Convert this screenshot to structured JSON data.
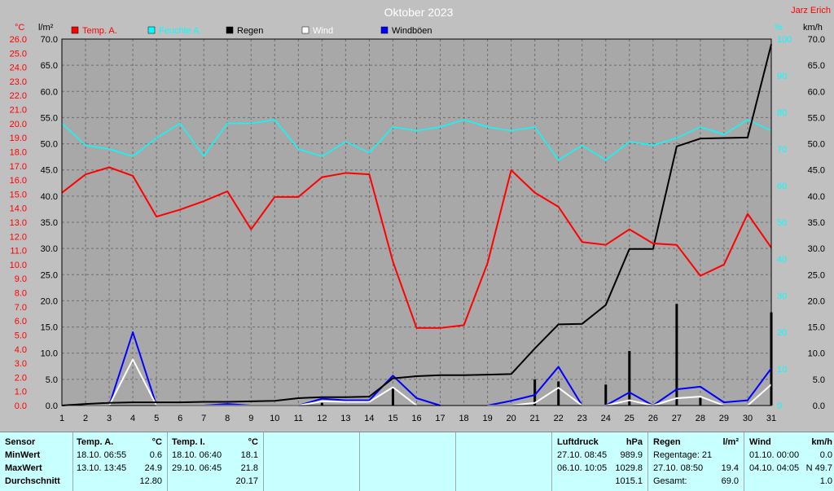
{
  "chart_data": {
    "type": "line",
    "title": "Oktober 2023",
    "corner_label": "Jarz Erich",
    "unit_labels": {
      "temp": "°C",
      "rain": "l/m²",
      "hum": "%",
      "wind": "km/h"
    },
    "legend": [
      {
        "name": "Temp. A.",
        "color": "#ff0000"
      },
      {
        "name": "Feuchte A.",
        "color": "#00ffff"
      },
      {
        "name": "Regen",
        "color": "#000000"
      },
      {
        "name": "Wind",
        "color": "#ffffff"
      },
      {
        "name": "Windböen",
        "color": "#0000ff"
      }
    ],
    "x": [
      1,
      2,
      3,
      4,
      5,
      6,
      7,
      8,
      9,
      10,
      11,
      12,
      13,
      14,
      15,
      16,
      17,
      18,
      19,
      20,
      21,
      22,
      23,
      24,
      25,
      26,
      27,
      28,
      29,
      30,
      31
    ],
    "axes": {
      "temp": {
        "ticks": [
          "26.0",
          "25.0",
          "24.0",
          "23.0",
          "22.0",
          "21.0",
          "20.0",
          "19.0",
          "18.0",
          "17.0",
          "16.0",
          "15.0",
          "14.0",
          "13.0",
          "12.0",
          "11.0",
          "10.0",
          "9.0",
          "8.0",
          "7.0",
          "6.0",
          "5.0",
          "4.0",
          "3.0",
          "2.0",
          "1.0",
          "0.0"
        ],
        "range": [
          0,
          26
        ]
      },
      "rain": {
        "ticks": [
          "70.0",
          "65.0",
          "60.0",
          "55.0",
          "50.0",
          "45.0",
          "40.0",
          "35.0",
          "30.0",
          "25.0",
          "20.0",
          "15.0",
          "10.0",
          "5.0",
          "0.0"
        ],
        "range": [
          0,
          70
        ]
      },
      "hum": {
        "ticks": [
          "100",
          "90",
          "80",
          "70",
          "60",
          "50",
          "40",
          "30",
          "20",
          "10",
          "0"
        ],
        "range": [
          0,
          100
        ]
      },
      "wind": {
        "ticks": [
          "70.0",
          "65.0",
          "60.0",
          "55.0",
          "50.0",
          "45.0",
          "40.0",
          "35.0",
          "30.0",
          "25.0",
          "20.0",
          "15.0",
          "10.0",
          "5.0",
          "0.0"
        ],
        "range": [
          0,
          70
        ]
      }
    },
    "series": [
      {
        "name": "Temp. A.",
        "axis": "temp",
        "color": "#ff0000",
        "values": [
          15.1,
          16.4,
          16.9,
          16.3,
          13.4,
          13.9,
          14.5,
          15.2,
          12.5,
          14.8,
          14.8,
          16.2,
          16.5,
          16.4,
          10.2,
          5.5,
          5.5,
          5.7,
          10.1,
          16.7,
          15.1,
          14.1,
          11.6,
          11.4,
          12.5,
          11.5,
          11.4,
          9.2,
          10.0,
          13.6,
          11.2
        ]
      },
      {
        "name": "Feuchte A.",
        "axis": "hum",
        "color": "#00ffff",
        "values": [
          77,
          71,
          70,
          68,
          73,
          77,
          68,
          77,
          77,
          78,
          70,
          68,
          72,
          69,
          76,
          75,
          76,
          78,
          76,
          75,
          76,
          67,
          71,
          67,
          72,
          71,
          73,
          76,
          74,
          78,
          75
        ]
      },
      {
        "name": "Regen",
        "axis": "rain",
        "color": "#000000",
        "values": [
          0.0,
          0.3,
          0.5,
          0.6,
          0.6,
          0.6,
          0.7,
          0.7,
          0.8,
          0.9,
          1.4,
          1.6,
          1.6,
          1.7,
          5.2,
          5.6,
          5.8,
          5.8,
          5.9,
          6.0,
          10.9,
          15.5,
          15.6,
          19.2,
          29.9,
          29.9,
          49.5,
          51.0,
          51.1,
          51.2,
          69.0
        ]
      },
      {
        "name": "Regen Tag",
        "axis": "rain",
        "color": "#000000",
        "type": "bar",
        "values": [
          0,
          0,
          0,
          0,
          0,
          0,
          0,
          0,
          0,
          0,
          0,
          0.5,
          0,
          0,
          3.5,
          0,
          0,
          0,
          0,
          0,
          5.0,
          4.6,
          0,
          4.0,
          10.4,
          0,
          19.4,
          1.5,
          0,
          0,
          17.8
        ]
      },
      {
        "name": "Wind",
        "axis": "wind",
        "color": "#ffffff",
        "values": [
          0,
          0,
          0,
          8.8,
          0,
          0,
          0,
          0,
          0,
          0,
          0,
          0.8,
          0.7,
          0.7,
          3.5,
          0,
          null,
          null,
          0,
          0,
          0.5,
          3.4,
          0,
          0,
          1.0,
          0,
          1.4,
          1.7,
          0,
          0,
          4.0
        ]
      },
      {
        "name": "Windböen",
        "axis": "wind",
        "color": "#0000ff",
        "values": [
          0,
          0,
          0,
          14.0,
          0,
          0,
          0,
          0.3,
          0,
          0,
          0,
          1.3,
          1.0,
          1.0,
          5.7,
          1.4,
          0,
          null,
          0,
          0.9,
          2.0,
          7.4,
          0,
          0,
          2.5,
          0,
          3.1,
          3.6,
          0.6,
          1.0,
          7.1
        ]
      }
    ],
    "grid": true
  },
  "stats": {
    "sensor": {
      "h": "Sensor",
      "rows": [
        "MinWert",
        "MaxWert",
        "Durchschnitt"
      ]
    },
    "temp_a": {
      "h": "Temp. A.",
      "u": "°C",
      "min_dt": "18.10.  06:55",
      "min_v": "0.6",
      "max_dt": "13.10.  13:45",
      "max_v": "24.9",
      "avg": "12.80"
    },
    "temp_i": {
      "h": "Temp. I.",
      "u": "°C",
      "min_dt": "18.10.  06:40",
      "min_v": "18.1",
      "max_dt": "29.10.  06:45",
      "max_v": "21.8",
      "avg": "20.17"
    },
    "luft": {
      "h": "Luftdruck",
      "u": "hPa",
      "min_dt": "27.10.  08:45",
      "min_v": "989.9",
      "max_dt": "06.10.  10:05",
      "max_v": "1029.8",
      "avg": "1015.1"
    },
    "regen": {
      "h": "Regen",
      "u": "l/m²",
      "r1": "Regentage: 21",
      "r2_dt": "27.10.  08:50",
      "r2_v": "19.4",
      "r3": "Gesamt:",
      "r3_v": "69.0"
    },
    "wind": {
      "h": "Wind",
      "u": "km/h",
      "min_dt": "01.10.  00:00",
      "min_v": "0.0",
      "max_dt": "04.10.  04:05",
      "max_v": "N 49.7",
      "avg": "1.0"
    }
  }
}
